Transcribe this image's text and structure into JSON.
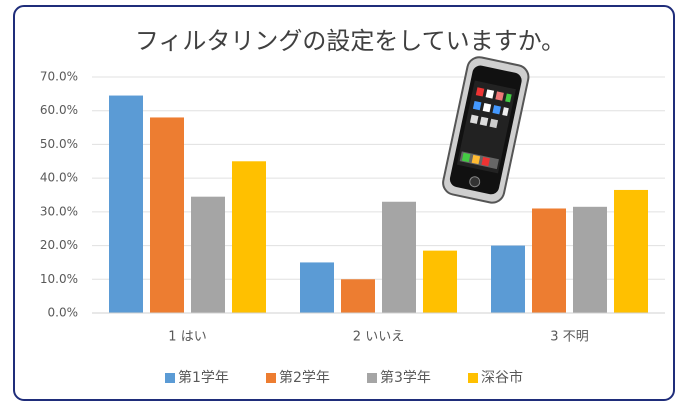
{
  "chart_data": {
    "type": "bar",
    "title": "フィルタリングの設定をしていますか。",
    "categories": [
      "1 はい",
      "2 いいえ",
      "3 不明"
    ],
    "series": [
      {
        "name": "第1学年",
        "color": "#5b9bd5",
        "values": [
          64.5,
          15,
          20
        ]
      },
      {
        "name": "第2学年",
        "color": "#ed7d31",
        "values": [
          58,
          10,
          31
        ]
      },
      {
        "name": "第3学年",
        "color": "#a5a5a5",
        "values": [
          34.5,
          33,
          31.5
        ]
      },
      {
        "name": "深谷市",
        "color": "#ffc000",
        "values": [
          45,
          18.5,
          36.5
        ]
      }
    ],
    "ylim": [
      0,
      70
    ],
    "yticks": [
      {
        "value": 0,
        "label": "0.0%"
      },
      {
        "value": 10,
        "label": "10.0%"
      },
      {
        "value": 20,
        "label": "20.0%"
      },
      {
        "value": 30,
        "label": "30.0%"
      },
      {
        "value": 40,
        "label": "40.0%"
      },
      {
        "value": 50,
        "label": "50.0%"
      },
      {
        "value": 60,
        "label": "60.0%"
      },
      {
        "value": 70,
        "label": "70.0%"
      }
    ],
    "grid": true,
    "legend": "bottom"
  }
}
